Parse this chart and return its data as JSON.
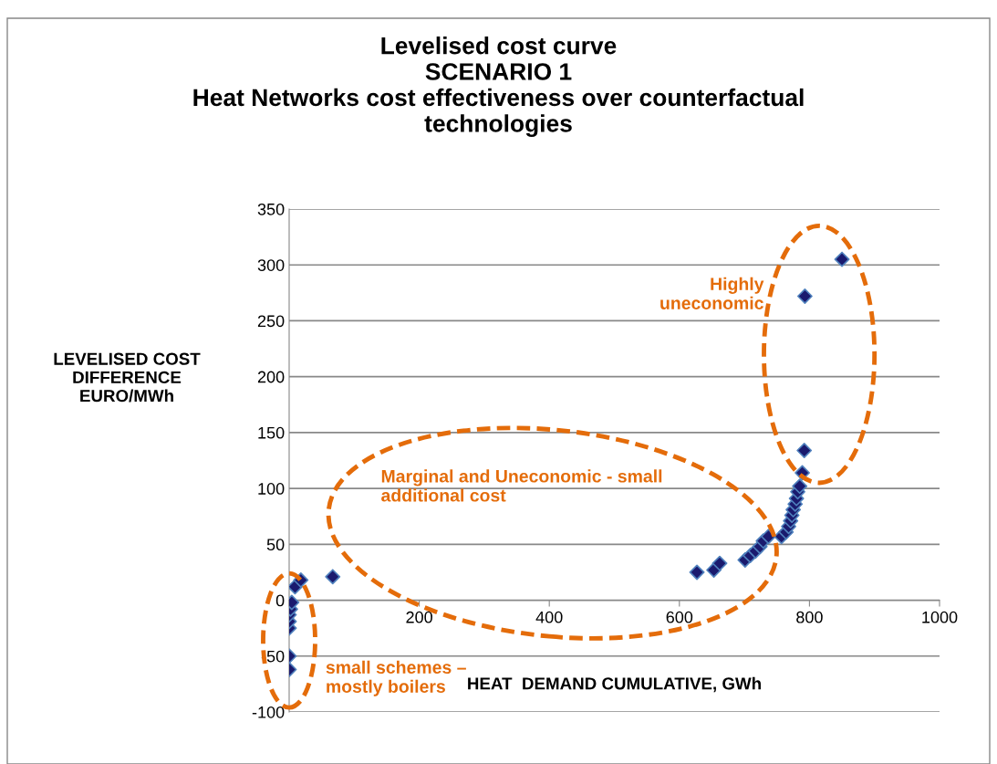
{
  "chart_data": {
    "type": "scatter",
    "title": "Levelised cost curve\nSCENARIO 1\nHeat Networks cost effectiveness over counterfactual\ntechnologies",
    "xlabel": "HEAT  DEMAND CUMULATIVE, GWh",
    "ylabel": "LEVELISED COST\nDIFFERENCE\nEURO/MWh",
    "series": [
      {
        "color": "#1a1a6e",
        "x": [
          0,
          0,
          0,
          0,
          0,
          2,
          4,
          9,
          18,
          67,
          627,
          653,
          662,
          701,
          709,
          717,
          724,
          729,
          737,
          757,
          764,
          768,
          771,
          773,
          775,
          778,
          780,
          782,
          785,
          789,
          792,
          793,
          850
        ],
        "values": [
          -62,
          -50,
          -25,
          -19,
          -13,
          -8,
          -2,
          12,
          18,
          21,
          25,
          27,
          33,
          36,
          40,
          44,
          48,
          53,
          57,
          57,
          61,
          66,
          71,
          76,
          81,
          86,
          91,
          97,
          102,
          114,
          134,
          272,
          305
        ]
      }
    ],
    "xlim": [
      0,
      1000
    ],
    "xticks": [
      {
        "value": 0,
        "label": null
      },
      200,
      400,
      600,
      800,
      1000
    ],
    "ylim": [
      -100,
      350
    ],
    "yticks": [
      -100,
      -50,
      0,
      50,
      100,
      150,
      200,
      250,
      300,
      350
    ],
    "grid": "y",
    "marker": "diamond",
    "annotations": [
      "Highly\nuneconomic",
      "Marginal and Uneconomic - small\nadditional cost",
      "small schemes –\nmostly boilers"
    ]
  }
}
